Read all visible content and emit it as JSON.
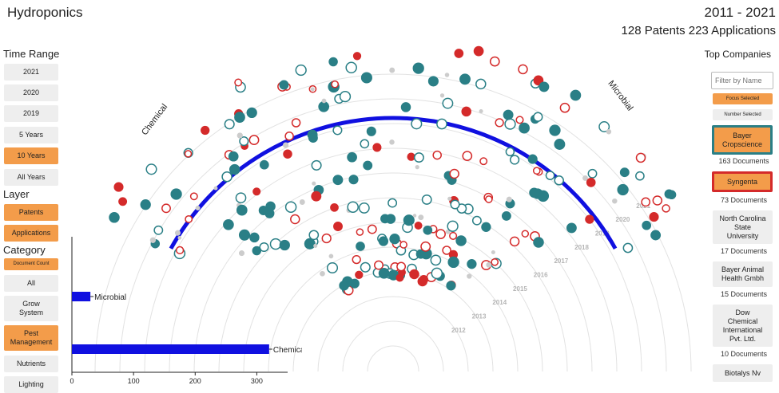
{
  "header": {
    "title": "Hydroponics",
    "range": "2011 - 2021",
    "counts": "128 Patents 223 Applications"
  },
  "sidebar": {
    "time_range_label": "Time Range",
    "time_buttons": [
      {
        "label": "2021",
        "active": false
      },
      {
        "label": "2020",
        "active": false
      },
      {
        "label": "2019",
        "active": false
      },
      {
        "label": "5 Years",
        "active": false
      },
      {
        "label": "10 Years",
        "active": true
      },
      {
        "label": "All Years",
        "active": false
      }
    ],
    "layer_label": "Layer",
    "layer_buttons": [
      {
        "label": "Patents",
        "active": true
      },
      {
        "label": "Applications",
        "active": true
      }
    ],
    "category_label": "Category",
    "category_buttons": [
      {
        "label": "Document Count",
        "active": true
      },
      {
        "label": "All",
        "active": false
      },
      {
        "label": "Grow System",
        "active": false
      },
      {
        "label": "Pest Management",
        "active": true
      },
      {
        "label": "Nutrients",
        "active": false
      },
      {
        "label": "Lighting",
        "active": false
      }
    ]
  },
  "right_panel": {
    "top_companies_label": "Top Companies",
    "filter_placeholder": "Filter by Name",
    "focus_selected": "Focus Selected",
    "number_selected": "Number Selected",
    "companies": [
      {
        "name": "Bayer Cropscience",
        "docs": "163 Documents",
        "highlight": "teal"
      },
      {
        "name": "Syngenta",
        "docs": "73 Documents",
        "highlight": "red"
      },
      {
        "name": "North Carolina State University",
        "docs": "17 Documents",
        "highlight": "none"
      },
      {
        "name": "Bayer Animal Health Gmbh",
        "docs": "15 Documents",
        "highlight": "none"
      },
      {
        "name": "Dow Chemical International Pvt. Ltd.",
        "docs": "10 Documents",
        "highlight": "none"
      },
      {
        "name": "Biotalys Nv",
        "docs": "",
        "highlight": "none"
      }
    ]
  },
  "radial": {
    "arc_labels": {
      "left": "Chemical",
      "right": "Microbial"
    },
    "year_rings": [
      "2012",
      "2013",
      "2014",
      "2015",
      "2016",
      "2017",
      "2018",
      "2019",
      "2020",
      "2021"
    ],
    "colors": {
      "arc": "#1010e0",
      "bayer": "#2a7f86",
      "syngenta": "#d42a2a",
      "other": "#cccccc"
    }
  },
  "chart_data": {
    "type": "bar",
    "orientation": "horizontal",
    "categories": [
      "Microbial",
      "Chemical"
    ],
    "values": [
      30,
      320
    ],
    "xlim": [
      0,
      350
    ],
    "xticks": [
      "0",
      "100",
      "200",
      "300"
    ],
    "color": "#1010e0"
  }
}
